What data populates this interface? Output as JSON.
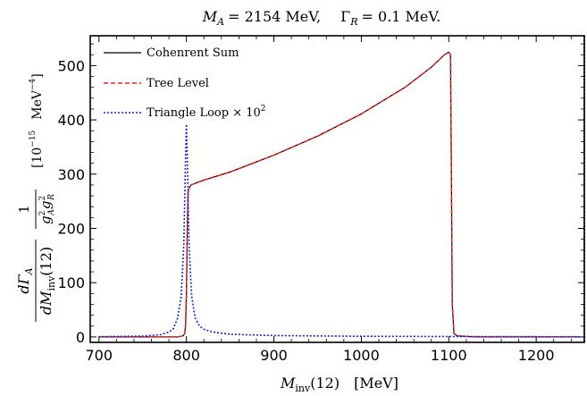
{
  "chart_data": {
    "type": "line",
    "title": "M_A = 2154 MeV,    Γ_R = 0.1 MeV.",
    "title_parts": {
      "ma_label": "M",
      "ma_sub": "A",
      "ma_value": "= 2154 MeV,",
      "gamma_label": "Γ",
      "gamma_sub": "R",
      "gamma_value": "= 0.1 MeV."
    },
    "xlabel": {
      "symbol": "M",
      "subscript": "inv",
      "argument": "(12)",
      "unit": "[MeV]"
    },
    "ylabel": {
      "numerator": "dΓ",
      "numerator_sub": "A",
      "denominator": "dM",
      "denominator_sub": "inv",
      "denominator_arg": "(12)",
      "factor_numerator": "1",
      "factor_denominator": "g",
      "factor_sup_a": "2",
      "factor_sub_a": "A",
      "factor_sup_r": "2",
      "factor_sub_r": "R",
      "unit_prefix": "[10",
      "unit_exponent": "−15",
      "unit_mev": "MeV",
      "unit_mev_exponent": "−4",
      "unit_close": "]"
    },
    "xlim": [
      690,
      1255
    ],
    "ylim": [
      -10,
      555
    ],
    "xticks": [
      700,
      800,
      900,
      1000,
      1100,
      1200
    ],
    "yticks": [
      0,
      100,
      200,
      300,
      400,
      500
    ],
    "grid": false,
    "legend_position": "top-left",
    "series": [
      {
        "name": "Cohenrent Sum",
        "color": "#000000",
        "dash": "solid",
        "points": [
          [
            700,
            0
          ],
          [
            790,
            0
          ],
          [
            796,
            2
          ],
          [
            798,
            6
          ],
          [
            799,
            20
          ],
          [
            800,
            80
          ],
          [
            801,
            200
          ],
          [
            802,
            270
          ],
          [
            805,
            280
          ],
          [
            820,
            289
          ],
          [
            850,
            304
          ],
          [
            900,
            335
          ],
          [
            950,
            370
          ],
          [
            1000,
            411
          ],
          [
            1050,
            460
          ],
          [
            1080,
            497
          ],
          [
            1095,
            520
          ],
          [
            1100,
            525
          ],
          [
            1102,
            520
          ],
          [
            1103,
            300
          ],
          [
            1104,
            60
          ],
          [
            1106,
            6
          ],
          [
            1110,
            2
          ],
          [
            1130,
            0
          ],
          [
            1250,
            0
          ]
        ]
      },
      {
        "name": "Tree Level",
        "color": "#e8201c",
        "dash": "dashed",
        "points": [
          [
            700,
            0
          ],
          [
            790,
            0
          ],
          [
            796,
            2
          ],
          [
            798,
            6
          ],
          [
            799,
            20
          ],
          [
            800,
            80
          ],
          [
            801,
            200
          ],
          [
            802,
            270
          ],
          [
            805,
            280
          ],
          [
            820,
            289
          ],
          [
            850,
            304
          ],
          [
            900,
            335
          ],
          [
            950,
            370
          ],
          [
            1000,
            411
          ],
          [
            1050,
            460
          ],
          [
            1080,
            497
          ],
          [
            1095,
            520
          ],
          [
            1100,
            525
          ],
          [
            1102,
            520
          ],
          [
            1103,
            300
          ],
          [
            1104,
            60
          ],
          [
            1106,
            6
          ],
          [
            1110,
            2
          ],
          [
            1130,
            0
          ],
          [
            1250,
            0
          ]
        ]
      },
      {
        "name_prefix": "Triangle Loop × 10",
        "name_exponent": "2",
        "name": "Triangle Loop × 10^2",
        "color": "#1f1fd6",
        "dash": "dotted",
        "points": [
          [
            700,
            0.5
          ],
          [
            750,
            1.5
          ],
          [
            770,
            4
          ],
          [
            780,
            9
          ],
          [
            785,
            15
          ],
          [
            790,
            35
          ],
          [
            794,
            75
          ],
          [
            797,
            170
          ],
          [
            799,
            330
          ],
          [
            800,
            392
          ],
          [
            801,
            330
          ],
          [
            803,
            170
          ],
          [
            806,
            75
          ],
          [
            810,
            35
          ],
          [
            815,
            20
          ],
          [
            820,
            14
          ],
          [
            830,
            9
          ],
          [
            850,
            5
          ],
          [
            900,
            2.5
          ],
          [
            1000,
            1.2
          ],
          [
            1100,
            0.8
          ],
          [
            1250,
            0.4
          ]
        ]
      }
    ]
  }
}
